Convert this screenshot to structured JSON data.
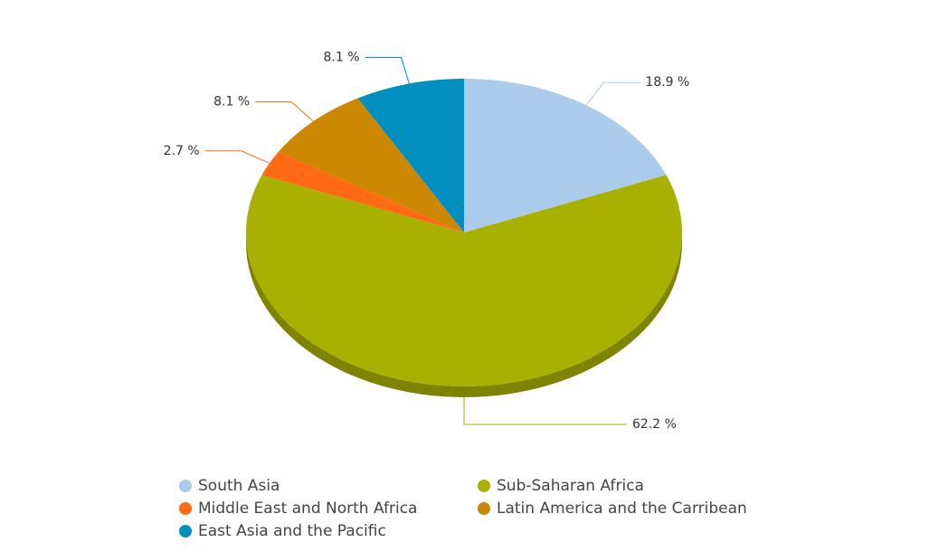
{
  "chart_data": {
    "type": "pie",
    "categories": [
      "South Asia",
      "Sub-Saharan Africa",
      "Middle East and North Africa",
      "Latin America and the Carribean",
      "East Asia and the Pacific"
    ],
    "values": [
      18.9,
      62.2,
      2.7,
      8.1,
      8.1
    ],
    "value_labels": [
      "18.9 %",
      "62.2 %",
      "2.7 %",
      "8.1 %",
      "8.1 %"
    ],
    "colors": [
      "#abcbeb",
      "#a8b000",
      "#ff6a13",
      "#cc8800",
      "#008fbf"
    ],
    "legend": "bottom"
  }
}
